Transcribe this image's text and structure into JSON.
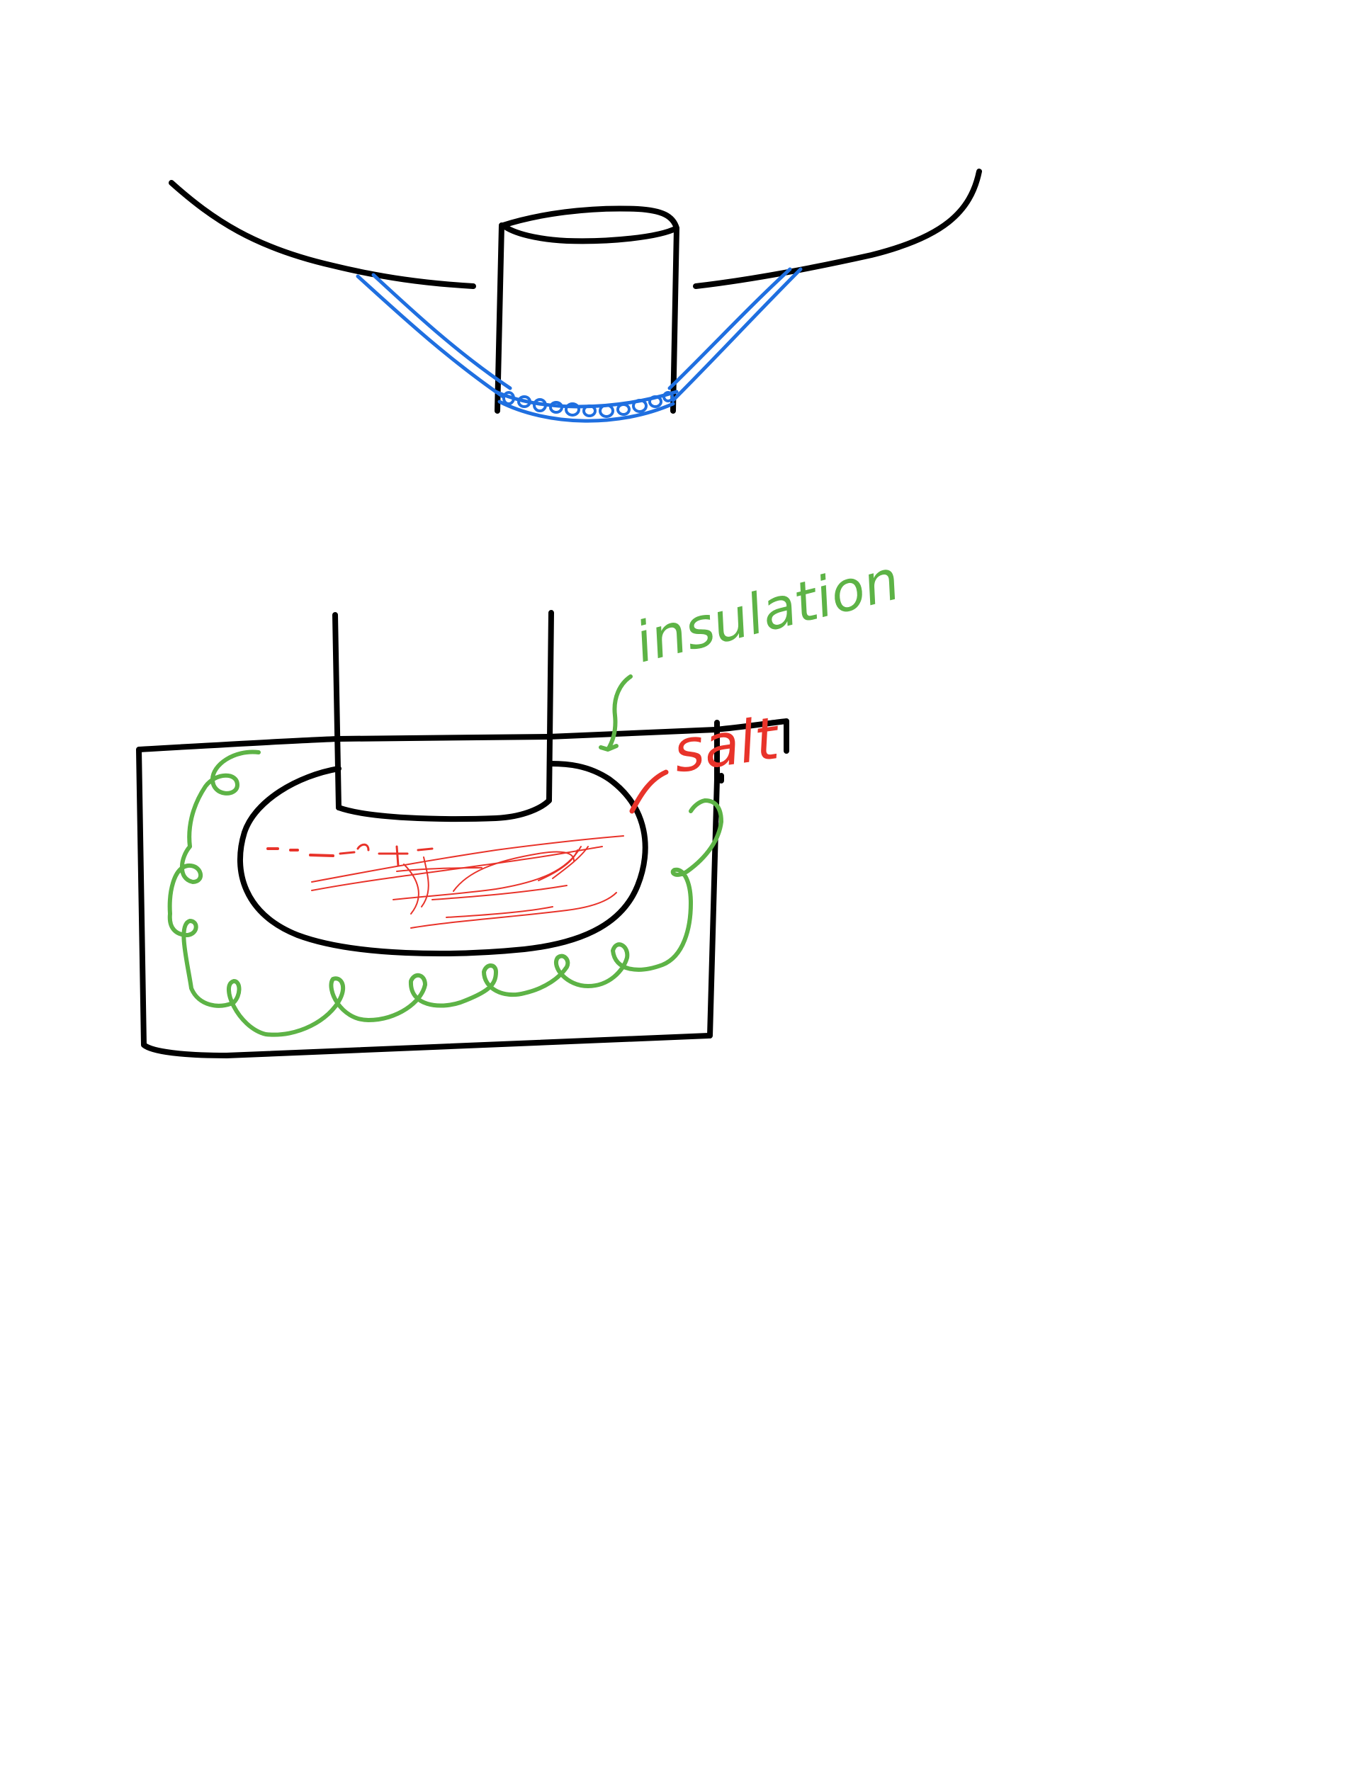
{
  "labels": {
    "insulation": "insulation",
    "salt": "salt"
  },
  "colors": {
    "ink": "#000000",
    "pipe_blue": "#1f6fe0",
    "insulation_green": "#5db346",
    "salt_red": "#e8332a",
    "background": "#ffffff"
  }
}
